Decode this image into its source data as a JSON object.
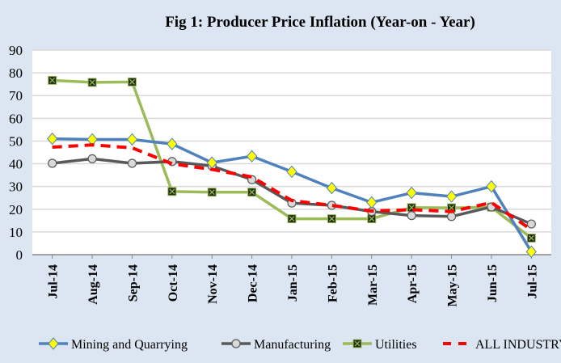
{
  "chart_data": {
    "type": "line",
    "title": "Fig 1: Producer Price Inflation (Year-on - Year)",
    "xlabel": "",
    "ylabel": "",
    "ylim": [
      0,
      90
    ],
    "yticks": [
      "0",
      "10",
      "20",
      "30",
      "40",
      "50",
      "60",
      "70",
      "80",
      "90"
    ],
    "grid": true,
    "legend": "bottom",
    "categories": [
      "Jul-14",
      "Aug-14",
      "Sep-14",
      "Oct-14",
      "Nov-14",
      "Dec-14",
      "Jan-15",
      "Feb-15",
      "Mar-15",
      "Apr-15",
      "May-15",
      "Jun-15",
      "Jul-15"
    ],
    "series": [
      {
        "name": "Mining and Quarrying",
        "color": "#4f81bd",
        "marker": "diamond",
        "marker_color": "#ffff00",
        "values": [
          51,
          50.7,
          50.7,
          48.7,
          40.5,
          43.3,
          36.5,
          29.3,
          23,
          27.2,
          25.6,
          30,
          1.3
        ]
      },
      {
        "name": "Manufacturing",
        "color": "#595959",
        "marker": "circle",
        "marker_color": "#d9d9d9",
        "values": [
          40.2,
          42.2,
          40.2,
          41,
          39,
          33,
          22.7,
          21.7,
          19,
          17.2,
          16.8,
          21,
          13.5
        ]
      },
      {
        "name": "Utilities",
        "color": "#9bbb59",
        "marker": "square-x",
        "marker_color": "#1f2d0f",
        "values": [
          76.7,
          75.8,
          76,
          27.8,
          27.5,
          27.5,
          15.8,
          15.8,
          15.8,
          20.7,
          20.6,
          20.9,
          7.3
        ]
      },
      {
        "name": "ALL INDUSTRY",
        "color": "#ff0000",
        "marker": "none",
        "dashed": true,
        "values": [
          47.3,
          48.3,
          47,
          40,
          37.5,
          34.2,
          23.8,
          21.7,
          19.2,
          19.8,
          19,
          22.9,
          11
        ]
      }
    ]
  }
}
